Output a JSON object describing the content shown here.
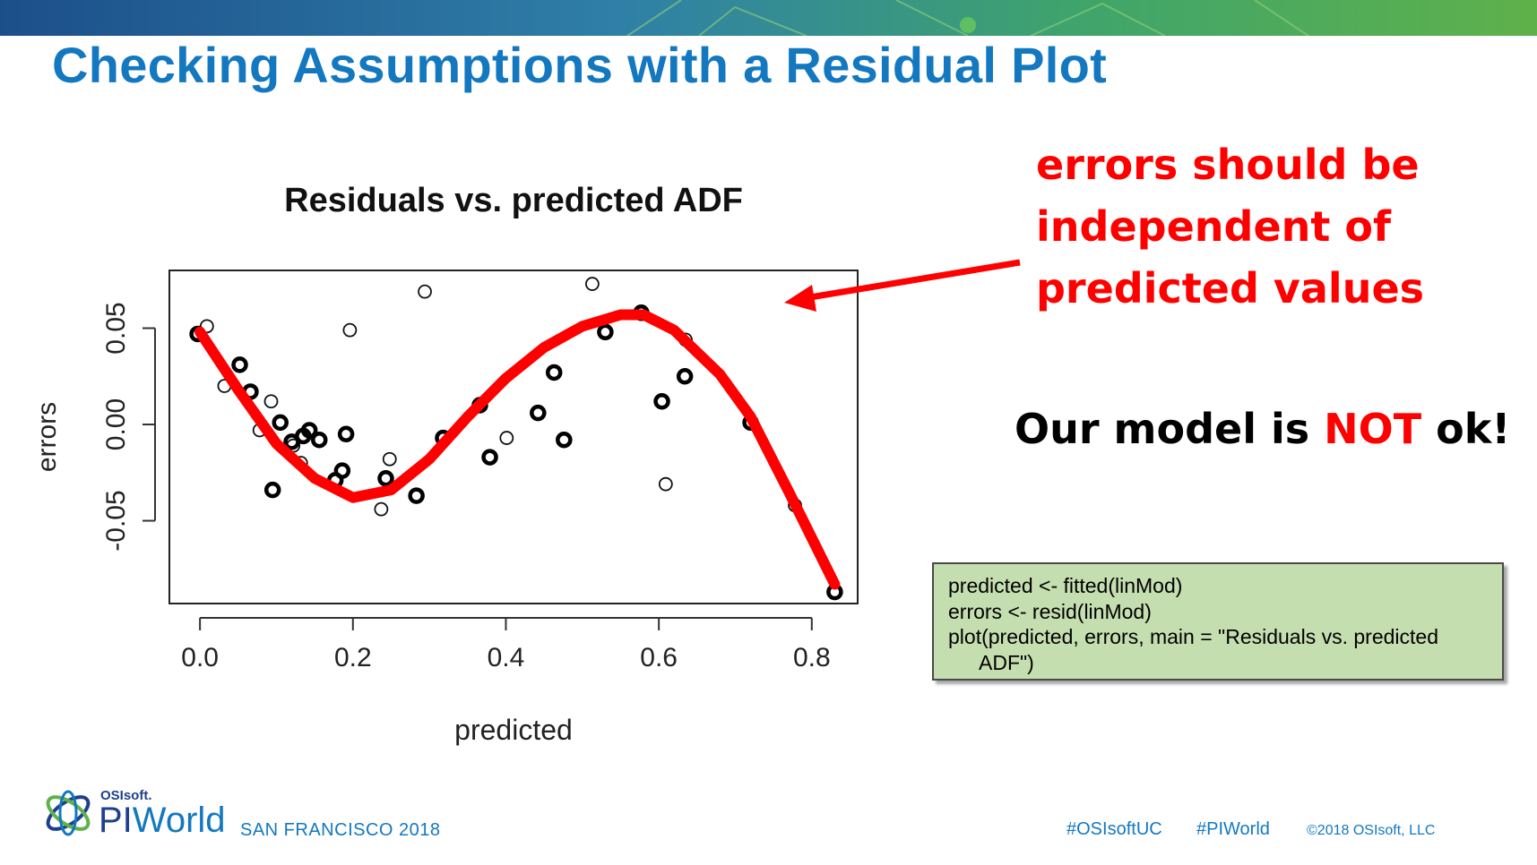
{
  "slide": {
    "title": "Checking Assumptions with a Residual Plot"
  },
  "callout": {
    "lines": [
      "errors should be",
      "independent of",
      "predicted values"
    ],
    "verdict_prefix": "Our model is ",
    "verdict_emphasis": "NOT",
    "verdict_suffix": " ok!"
  },
  "code": {
    "lines": [
      "predicted <- fitted(linMod)",
      "errors <- resid(linMod)",
      "plot(predicted, errors, main = \"Residuals vs. predicted",
      "ADF\")"
    ]
  },
  "footer": {
    "brand_small": "OSIsoft.",
    "brand_pi": "PI",
    "brand_world": "World",
    "city": "SAN FRANCISCO 2018",
    "hashtag1": "#OSIsoftUC",
    "hashtag2": "#PIWorld",
    "copyright": "©2018 OSIsoft, LLC"
  },
  "colors": {
    "title": "#1378c0",
    "callout": "#ff0000",
    "trend_line": "#ff0000",
    "code_bg": "#c5deb0",
    "footer": "#1378c0"
  },
  "chart_data": {
    "type": "scatter",
    "title": "Residuals vs. predicted ADF",
    "xlabel": "predicted",
    "ylabel": "errors",
    "xlim": [
      -0.04,
      0.86
    ],
    "ylim": [
      -0.093,
      0.08
    ],
    "xticks": [
      0.0,
      0.2,
      0.4,
      0.6,
      0.8
    ],
    "xtick_labels": [
      "0.0",
      "0.2",
      "0.4",
      "0.6",
      "0.8"
    ],
    "yticks": [
      -0.05,
      0.0,
      0.05
    ],
    "ytick_labels": [
      "-0.05",
      "0.00",
      "0.05"
    ],
    "grid": false,
    "points_light": [
      [
        0.009,
        0.051
      ],
      [
        0.032,
        0.02
      ],
      [
        0.078,
        -0.003
      ],
      [
        0.093,
        0.012
      ],
      [
        0.122,
        -0.011
      ],
      [
        0.132,
        -0.02
      ],
      [
        0.196,
        0.049
      ],
      [
        0.237,
        -0.044
      ],
      [
        0.248,
        -0.018
      ],
      [
        0.294,
        0.069
      ],
      [
        0.401,
        -0.007
      ],
      [
        0.513,
        0.073
      ],
      [
        0.609,
        -0.031
      ],
      [
        0.635,
        0.044
      ],
      [
        0.778,
        -0.042
      ]
    ],
    "points_bold": [
      [
        -0.003,
        0.047
      ],
      [
        0.052,
        0.031
      ],
      [
        0.066,
        0.017
      ],
      [
        0.095,
        -0.034
      ],
      [
        0.105,
        0.001
      ],
      [
        0.12,
        -0.009
      ],
      [
        0.135,
        -0.006
      ],
      [
        0.143,
        -0.003
      ],
      [
        0.156,
        -0.008
      ],
      [
        0.177,
        -0.029
      ],
      [
        0.186,
        -0.024
      ],
      [
        0.191,
        -0.005
      ],
      [
        0.243,
        -0.028
      ],
      [
        0.283,
        -0.037
      ],
      [
        0.318,
        -0.007
      ],
      [
        0.366,
        0.01
      ],
      [
        0.379,
        -0.017
      ],
      [
        0.442,
        0.006
      ],
      [
        0.463,
        0.027
      ],
      [
        0.476,
        -0.008
      ],
      [
        0.53,
        0.048
      ],
      [
        0.577,
        0.058
      ],
      [
        0.604,
        0.012
      ],
      [
        0.634,
        0.025
      ],
      [
        0.72,
        0.001
      ],
      [
        0.83,
        -0.087
      ]
    ],
    "trend_curve": [
      [
        0.0,
        0.048
      ],
      [
        0.05,
        0.018
      ],
      [
        0.1,
        -0.01
      ],
      [
        0.15,
        -0.028
      ],
      [
        0.2,
        -0.038
      ],
      [
        0.25,
        -0.034
      ],
      [
        0.3,
        -0.018
      ],
      [
        0.35,
        0.004
      ],
      [
        0.4,
        0.024
      ],
      [
        0.45,
        0.04
      ],
      [
        0.5,
        0.051
      ],
      [
        0.55,
        0.057
      ],
      [
        0.58,
        0.057
      ],
      [
        0.62,
        0.049
      ],
      [
        0.68,
        0.026
      ],
      [
        0.72,
        0.004
      ],
      [
        0.77,
        -0.035
      ],
      [
        0.83,
        -0.083
      ]
    ]
  }
}
